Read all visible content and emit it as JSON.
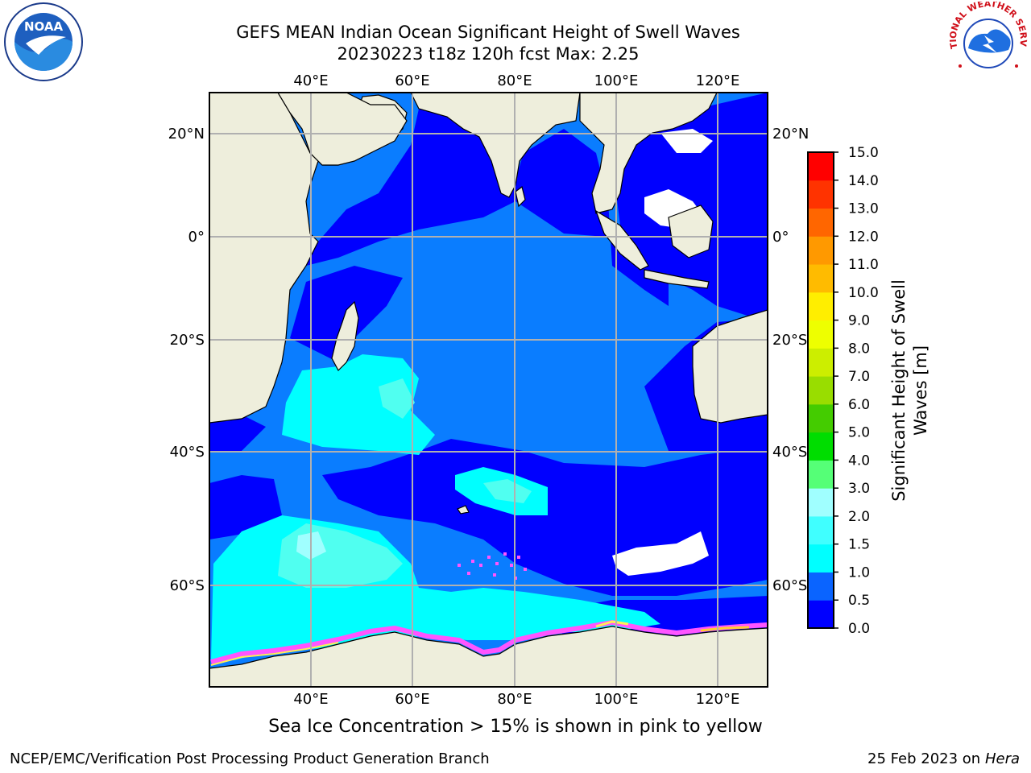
{
  "header": {
    "title_line1": "GEFS MEAN Indian Ocean Significant Height of Swell Waves",
    "title_line2": "20230223 t18z 120h fcst   Max: 2.25"
  },
  "logos": {
    "left": {
      "icon": "noaa-logo-icon",
      "text": "NOAA"
    },
    "right": {
      "icon": "nws-logo-icon",
      "text": "NATIONAL WEATHER SERVICE"
    }
  },
  "map": {
    "lon_labels": [
      "40°E",
      "60°E",
      "80°E",
      "100°E",
      "120°E"
    ],
    "lat_labels": [
      "20°N",
      "0°",
      "20°S",
      "40°S",
      "60°S"
    ],
    "colors": {
      "land": "#eeeedc",
      "deep_blue": "#0000ff",
      "mid_blue": "#0a7dff",
      "cyan": "#00ffff",
      "light_cyan": "#50fff0",
      "pale_cyan": "#a0ffff",
      "sea_ice_pink": "#ff55ff",
      "grid": "#b0b0b0"
    }
  },
  "colorbar": {
    "label": "Significant Height of Swell Waves [m]",
    "label_line1": "Significant Height of Swell",
    "label_line2": "Waves [m]",
    "ticks": [
      "0.0",
      "0.5",
      "1.0",
      "1.5",
      "2.0",
      "3.0",
      "4.0",
      "5.0",
      "6.0",
      "7.0",
      "8.0",
      "9.0",
      "10.0",
      "11.0",
      "12.0",
      "13.0",
      "14.0",
      "15.0"
    ],
    "colors": [
      "#0000ff",
      "#0a64ff",
      "#00ffff",
      "#40ffff",
      "#a0ffff",
      "#55ff77",
      "#00dd00",
      "#44cc00",
      "#99dd00",
      "#ccee00",
      "#eeff00",
      "#ffee00",
      "#ffbb00",
      "#ff9900",
      "#ff6600",
      "#ff3300",
      "#ff0000"
    ]
  },
  "footnote": "Sea Ice Concentration > 15% is shown in pink to yellow",
  "footer": {
    "left": "NCEP/EMC/Verification Post Processing Product Generation Branch",
    "right_date": "25 Feb 2023 on",
    "right_host": "Hera"
  }
}
